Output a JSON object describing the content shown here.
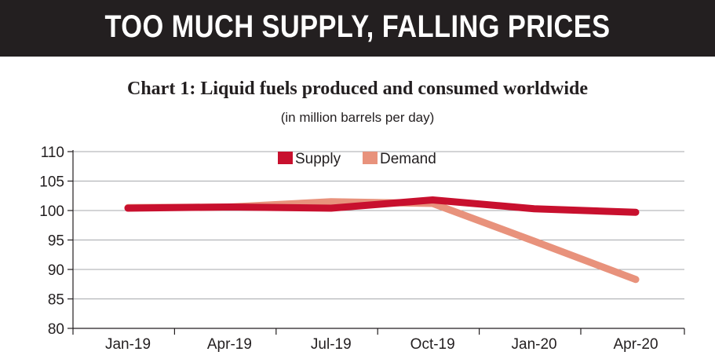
{
  "header": {
    "title": "TOO MUCH SUPPLY, FALLING PRICES"
  },
  "chart_data": {
    "type": "line",
    "title": "Chart 1: Liquid fuels produced  and consumed worldwide",
    "subtitle": "(in million barrels per day)",
    "categories": [
      "Jan-19",
      "Apr-19",
      "Jul-19",
      "Oct-19",
      "Jan-20",
      "Apr-20"
    ],
    "ylim": [
      80,
      110
    ],
    "yticks": [
      80,
      85,
      90,
      95,
      100,
      105,
      110
    ],
    "grid": true,
    "legend_position": "top-center",
    "series": [
      {
        "name": "Supply",
        "color": "#c8102e",
        "values": [
          100.4,
          100.6,
          100.4,
          101.8,
          100.3,
          99.7
        ]
      },
      {
        "name": "Demand",
        "color": "#e8927c",
        "values": [
          100.5,
          100.6,
          101.5,
          101.2,
          94.8,
          88.3
        ]
      }
    ]
  }
}
